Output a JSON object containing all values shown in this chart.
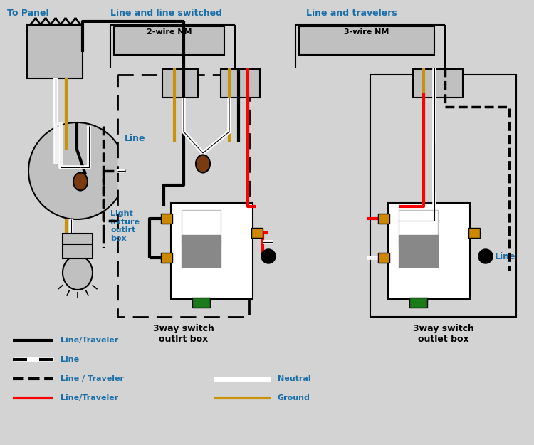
{
  "bg_color": "#d3d3d3",
  "black": "#000000",
  "white": "#ffffff",
  "red": "#ff0000",
  "gold": "#c8920a",
  "brown": "#7a3b10",
  "green": "#1a7a1a",
  "gray": "#888888",
  "lgray": "#c0c0c0",
  "orange": "#cc8800",
  "tcol": "#1a6ea8",
  "labels": {
    "to_panel": "To Panel",
    "line_switched": "Line and line switched",
    "line_travelers": "Line and travelers",
    "wire_2nm": "2-wire NM",
    "wire_3nm": "3-wire NM",
    "light_fixture": "Light\nfixture\noutlrt\nbox",
    "switch1": "3way switch\noutlrt box",
    "switch2": "3way switch\noutlet box",
    "line1": "Line",
    "line2": "Line"
  }
}
